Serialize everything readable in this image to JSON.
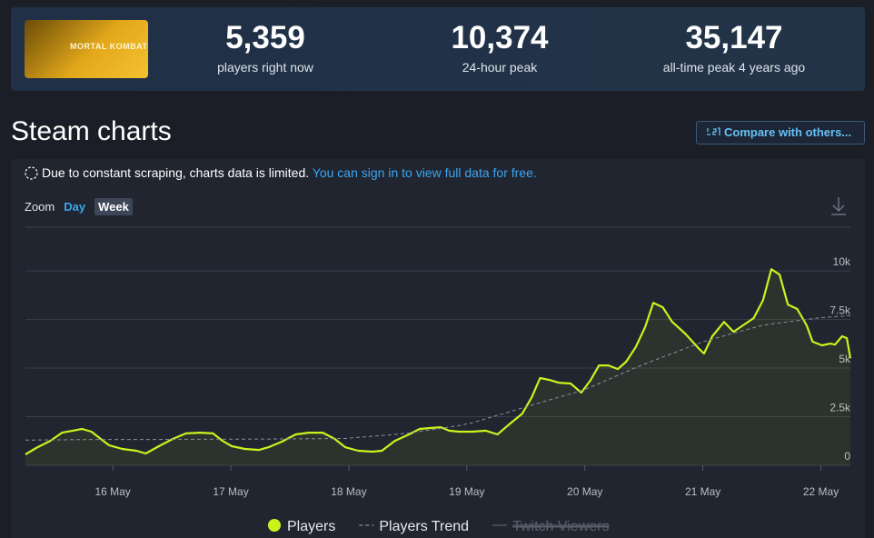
{
  "header": {
    "logo_text": "MORTAL KOMBAT",
    "stats": [
      {
        "value": "5,359",
        "label": "players right now"
      },
      {
        "value": "10,374",
        "label": "24-hour peak"
      },
      {
        "value": "35,147",
        "label": "all-time peak 4 years ago"
      }
    ]
  },
  "section_title": "Steam charts",
  "compare_button": "Compare with others...",
  "notice": "Due to constant scraping, charts data is limited.",
  "notice_link": "You can sign in to view full data for free.",
  "zoom_label": "Zoom",
  "zoom_options": [
    "Day",
    "Week"
  ],
  "zoom_active": 1,
  "chart_data": {
    "type": "line",
    "x": [
      15.26,
      15.35,
      15.47,
      15.57,
      15.66,
      15.74,
      15.82,
      15.89,
      15.97,
      16.08,
      16.2,
      16.28,
      16.39,
      16.51,
      16.62,
      16.74,
      16.85,
      16.93,
      17.01,
      17.12,
      17.24,
      17.32,
      17.43,
      17.55,
      17.66,
      17.78,
      17.88,
      17.97,
      18.08,
      18.2,
      18.28,
      18.39,
      18.51,
      18.6,
      18.7,
      18.78,
      18.85,
      18.93,
      19.05,
      19.16,
      19.26,
      19.35,
      19.47,
      19.55,
      19.62,
      19.7,
      19.78,
      19.88,
      19.97,
      20.05,
      20.12,
      20.2,
      20.28,
      20.35,
      20.43,
      20.51,
      20.58,
      20.66,
      20.74,
      20.85,
      20.97,
      21.01,
      21.08,
      21.18,
      21.26,
      21.34,
      21.43,
      21.51,
      21.58,
      21.65,
      21.72,
      21.8,
      21.88,
      21.93,
      22.01,
      22.08,
      22.12,
      22.18,
      22.22,
      22.25
    ],
    "series": [
      {
        "name": "Players",
        "color": "#c9f31d",
        "values": [
          560,
          890,
          1260,
          1680,
          1780,
          1870,
          1730,
          1400,
          1030,
          840,
          750,
          610,
          980,
          1360,
          1640,
          1680,
          1640,
          1260,
          980,
          840,
          790,
          930,
          1210,
          1590,
          1680,
          1680,
          1360,
          930,
          750,
          700,
          750,
          1260,
          1590,
          1870,
          1920,
          1960,
          1780,
          1730,
          1730,
          1780,
          1590,
          2060,
          2660,
          3500,
          4490,
          4390,
          4250,
          4210,
          3740,
          4390,
          5140,
          5140,
          4950,
          5330,
          6070,
          7100,
          8360,
          8130,
          7380,
          6780,
          5980,
          5750,
          6640,
          7380,
          6870,
          7200,
          7570,
          8500,
          10090,
          9810,
          8270,
          8040,
          7200,
          6360,
          6170,
          6260,
          6210,
          6640,
          6540,
          5510
        ]
      },
      {
        "name": "Players Trend",
        "color": "#8a8f99",
        "dashed": true,
        "values": [
          1300,
          1300,
          1310,
          1310,
          1320,
          1320,
          1330,
          1330,
          1330,
          1330,
          1330,
          1330,
          1330,
          1335,
          1335,
          1335,
          1340,
          1340,
          1340,
          1345,
          1350,
          1350,
          1355,
          1360,
          1365,
          1370,
          1375,
          1380,
          1440,
          1490,
          1530,
          1590,
          1660,
          1740,
          1830,
          1900,
          1970,
          2040,
          2190,
          2390,
          2570,
          2730,
          2950,
          3090,
          3220,
          3360,
          3500,
          3680,
          3840,
          4030,
          4210,
          4420,
          4630,
          4810,
          5020,
          5220,
          5380,
          5570,
          5750,
          6010,
          6280,
          6370,
          6490,
          6660,
          6800,
          6930,
          7080,
          7210,
          7270,
          7320,
          7380,
          7440,
          7500,
          7540,
          7600,
          7630,
          7650,
          7670,
          7690,
          7700
        ]
      },
      {
        "name": "Twitch Viewers",
        "color": "#5a606b",
        "visible": false,
        "values": [
          null,
          null,
          null,
          null,
          null,
          null,
          null,
          null,
          null,
          null,
          null,
          null,
          null,
          null,
          null,
          null,
          null,
          null,
          null,
          null,
          null,
          null,
          null,
          null,
          null,
          null,
          null,
          null,
          null,
          null,
          null,
          null,
          null,
          null,
          null,
          null,
          null,
          null,
          null,
          null,
          null,
          null,
          null,
          null,
          null,
          null,
          null,
          null,
          null,
          null,
          null,
          null,
          null,
          null,
          null,
          null,
          null,
          null,
          null,
          null,
          null,
          null,
          null,
          null,
          null,
          null,
          null,
          null,
          null,
          null,
          null,
          null,
          null,
          null,
          null,
          null,
          null,
          null,
          null,
          null
        ]
      }
    ],
    "xlim": [
      15.26,
      22.25
    ],
    "xticks": [
      {
        "value": 16,
        "label": "16 May"
      },
      {
        "value": 17,
        "label": "17 May"
      },
      {
        "value": 18,
        "label": "18 May"
      },
      {
        "value": 19,
        "label": "19 May"
      },
      {
        "value": 20,
        "label": "20 May"
      },
      {
        "value": 21,
        "label": "21 May"
      },
      {
        "value": 22,
        "label": "22 May"
      }
    ],
    "ylim": [
      0,
      12250
    ],
    "yticks": [
      0,
      {
        "value": 2500,
        "label": "2.5k"
      },
      {
        "value": 5000,
        "label": "5k"
      },
      {
        "value": 7500,
        "label": "7.5k"
      },
      {
        "value": 10000,
        "label": "10k"
      }
    ],
    "grid": true
  }
}
